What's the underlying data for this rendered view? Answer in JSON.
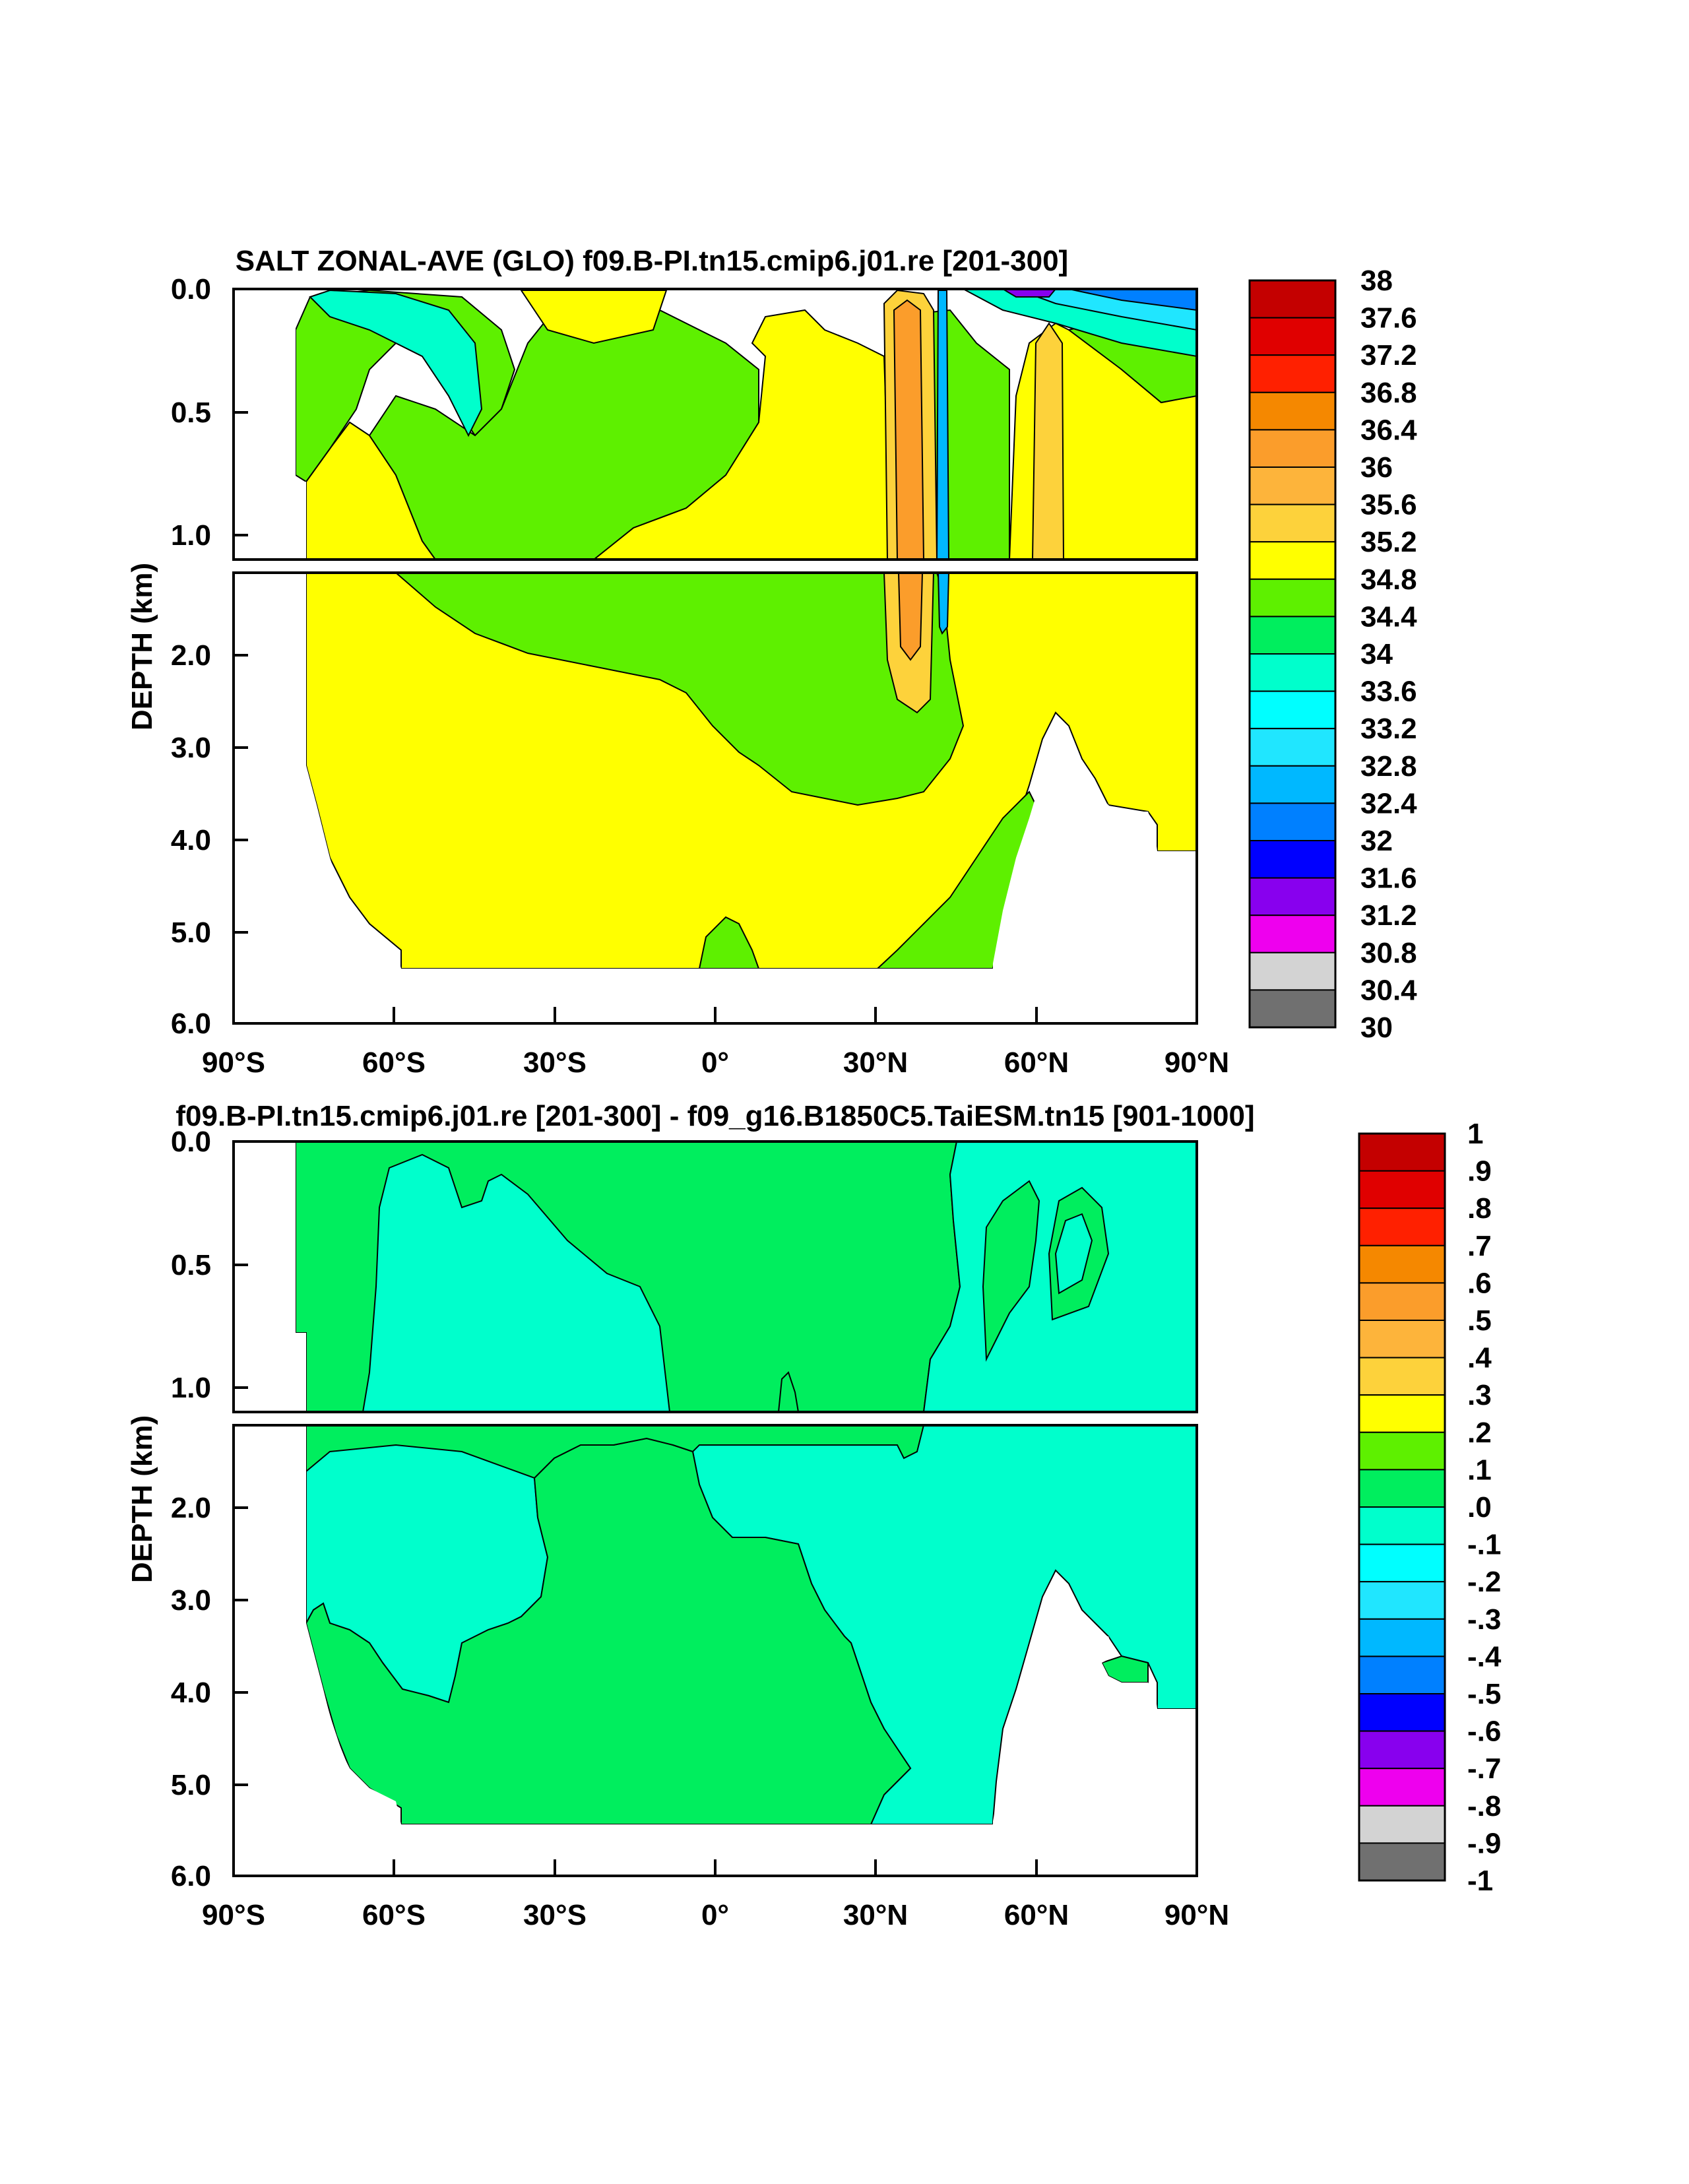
{
  "chart_data": [
    {
      "type": "heatmap",
      "title": "SALT ZONAL-AVE (GLO) f09.B-PI.tn15.cmip6.j01.re [201-300]",
      "ylabel": "DEPTH (km)",
      "xlabel": "",
      "x_ticks": [
        "90°S",
        "60°S",
        "30°S",
        "0°",
        "30°N",
        "60°N",
        "90°N"
      ],
      "x_tick_values": [
        -90,
        -60,
        -30,
        0,
        30,
        60,
        90
      ],
      "y_ticks_upper": [
        "0.0",
        "0.5",
        "1.0"
      ],
      "y_ticks_lower": [
        "2.0",
        "3.0",
        "4.0",
        "5.0",
        "6.0"
      ],
      "xlim": [
        -90,
        90
      ],
      "ylim_upper": [
        0,
        1.1
      ],
      "ylim_lower": [
        1.15,
        6.0
      ],
      "colorbar_labels": [
        "38",
        "37.6",
        "37.2",
        "36.8",
        "36.4",
        "36",
        "35.6",
        "35.2",
        "34.8",
        "34.4",
        "34",
        "33.6",
        "33.2",
        "32.8",
        "32.4",
        "32",
        "31.6",
        "31.2",
        "30.8",
        "30.4",
        "30"
      ],
      "colorbar_colors": [
        "#c40000",
        "#e00000",
        "#ff2000",
        "#f58800",
        "#fb9d2b",
        "#fdb43b",
        "#fdd23b",
        "#ffff00",
        "#5ef000",
        "#00ee5e",
        "#00ffcc",
        "#00ffff",
        "#20e6ff",
        "#00b8ff",
        "#0080ff",
        "#0000ff",
        "#8800ee",
        "#ee00ee",
        "#d3d3d3",
        "#707070"
      ],
      "dominant_fields": {
        "yellow_34.8_35.2": "#ffff00",
        "lightgreen_34.4_34.8": "#5ef000",
        "green_34.0_34.4": "#00ee5e",
        "cyan_33.6_34.0": "#00ffcc",
        "orange_35.2_35.6": "#fdd23b"
      }
    },
    {
      "type": "heatmap",
      "title": "f09.B-PI.tn15.cmip6.j01.re [201-300] - f09_g16.B1850C5.TaiESM.tn15 [901-1000]",
      "ylabel": "DEPTH (km)",
      "xlabel": "",
      "x_ticks": [
        "90°S",
        "60°S",
        "30°S",
        "0°",
        "30°N",
        "60°N",
        "90°N"
      ],
      "x_tick_values": [
        -90,
        -60,
        -30,
        0,
        30,
        60,
        90
      ],
      "y_ticks_upper": [
        "0.0",
        "0.5",
        "1.0"
      ],
      "y_ticks_lower": [
        "2.0",
        "3.0",
        "4.0",
        "5.0",
        "6.0"
      ],
      "xlim": [
        -90,
        90
      ],
      "ylim_upper": [
        0,
        1.1
      ],
      "ylim_lower": [
        1.15,
        6.0
      ],
      "colorbar_labels": [
        "1",
        ".9",
        ".8",
        ".7",
        ".6",
        ".5",
        ".4",
        ".3",
        ".2",
        ".1",
        ".0",
        "-.1",
        "-.2",
        "-.3",
        "-.4",
        "-.5",
        "-.6",
        "-.7",
        "-.8",
        "-.9",
        "-1"
      ],
      "colorbar_colors": [
        "#c40000",
        "#e00000",
        "#ff2000",
        "#f58800",
        "#fb9d2b",
        "#fdb43b",
        "#fdd23b",
        "#ffff00",
        "#5ef000",
        "#00ee5e",
        "#00ffcc",
        "#00ffff",
        "#20e6ff",
        "#00b8ff",
        "#0080ff",
        "#0000ff",
        "#8800ee",
        "#ee00ee",
        "#d3d3d3",
        "#707070"
      ],
      "dominant_fields": {
        "green_0.0_0.1": "#00ee5e",
        "cyan_-0.1_0.0": "#00ffcc"
      }
    }
  ]
}
